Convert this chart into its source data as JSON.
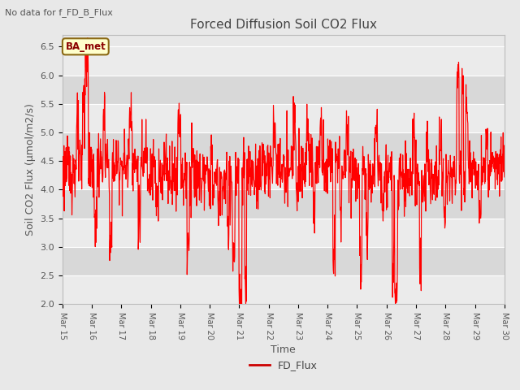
{
  "title": "Forced Diffusion Soil CO2 Flux",
  "top_left_text": "No data for f_FD_B_Flux",
  "ylabel": "Soil CO2 Flux (μmol/m2/s)",
  "xlabel": "Time",
  "legend_label": "FD_Flux",
  "line_color": "#FF0000",
  "legend_line_color": "#CC0000",
  "ylim": [
    2.0,
    6.7
  ],
  "yticks": [
    2.0,
    2.5,
    3.0,
    3.5,
    4.0,
    4.5,
    5.0,
    5.5,
    6.0,
    6.5
  ],
  "bg_color": "#E8E8E8",
  "axes_bg": "#E8E8E8",
  "band_light": "#EBEBEB",
  "band_dark": "#D8D8D8",
  "badge_text": "BA_met",
  "badge_bg": "#FFFFCC",
  "badge_border": "#8B6914",
  "x_start_day": 15,
  "x_end_day": 30,
  "x_tick_days": [
    15,
    16,
    17,
    18,
    19,
    20,
    21,
    22,
    23,
    24,
    25,
    26,
    27,
    28,
    29,
    30
  ],
  "x_tick_labels": [
    "Mar 15",
    "Mar 16",
    "Mar 17",
    "Mar 18",
    "Mar 19",
    "Mar 20",
    "Mar 21",
    "Mar 22",
    "Mar 23",
    "Mar 24",
    "Mar 25",
    "Mar 26",
    "Mar 27",
    "Mar 28",
    "Mar 29",
    "Mar 30"
  ]
}
